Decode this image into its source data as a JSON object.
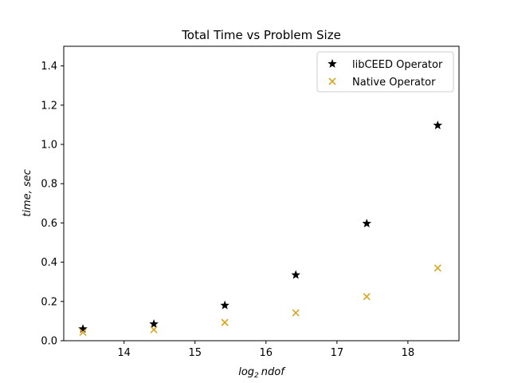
{
  "chart_data": {
    "type": "scatter",
    "title": "Total Time vs Problem Size",
    "xlabel_base": "log",
    "xlabel_sub": "2",
    "xlabel_rest": "ndof",
    "ylabel": "time, sec",
    "xlim": [
      13.15,
      18.72
    ],
    "ylim": [
      0.0,
      1.5
    ],
    "xticks": [
      14,
      15,
      16,
      17,
      18
    ],
    "yticks": [
      0.0,
      0.2,
      0.4,
      0.6,
      0.8,
      1.0,
      1.2,
      1.4
    ],
    "ytick_labels": [
      "0.0",
      "0.2",
      "0.4",
      "0.6",
      "0.8",
      "1.0",
      "1.2",
      "1.4"
    ],
    "legend_position": "top-right",
    "series": [
      {
        "name": "libCEED Operator",
        "marker": "star",
        "color": "#000000",
        "x": [
          13.42,
          14.42,
          15.42,
          16.42,
          17.42,
          18.42
        ],
        "y": [
          0.06,
          0.085,
          0.18,
          0.335,
          0.597,
          1.097
        ]
      },
      {
        "name": "Native Operator",
        "marker": "x",
        "color": "#DAA520",
        "x": [
          13.42,
          14.42,
          15.42,
          16.42,
          17.42,
          18.42
        ],
        "y": [
          0.043,
          0.056,
          0.093,
          0.142,
          0.225,
          0.37
        ]
      }
    ]
  }
}
